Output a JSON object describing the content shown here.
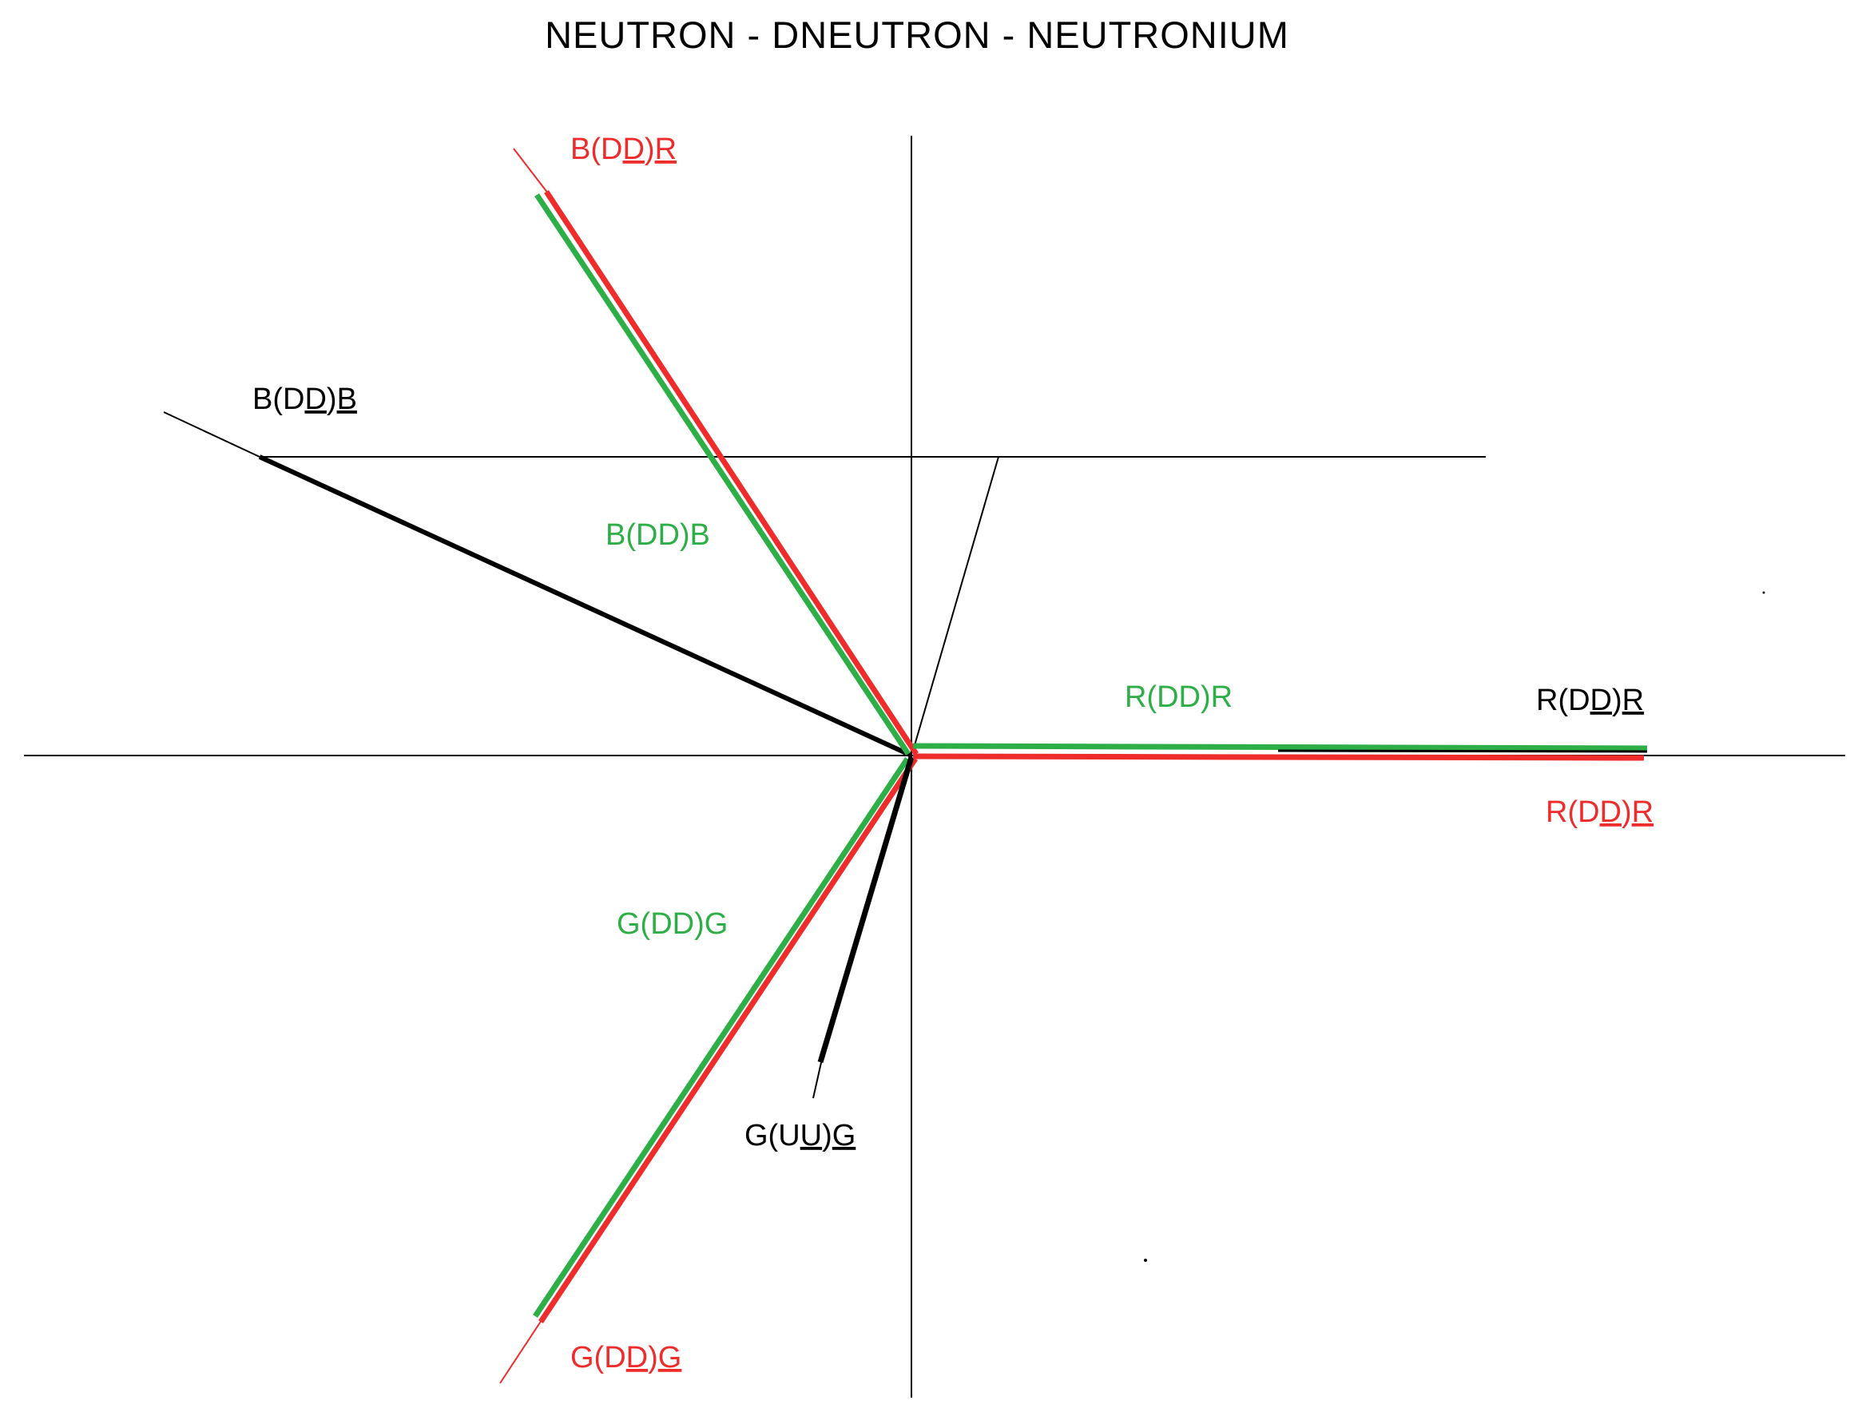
{
  "title": "NEUTRON - DNEUTRON - NEUTRONIUM",
  "colors": {
    "black": "#000000",
    "red": "#ee2c2c",
    "green": "#2eae47"
  },
  "labels": {
    "b_dd_r_red": {
      "pre": "B(D",
      "ul1": "D",
      "mid": ")",
      "ul2": "R",
      "post": ""
    },
    "b_dd_b_black": {
      "pre": "B(D",
      "ul1": "D",
      "mid": ")",
      "ul2": "B",
      "post": ""
    },
    "b_dd_b_green": {
      "pre": "B(DD)B",
      "ul1": "",
      "mid": "",
      "ul2": "",
      "post": ""
    },
    "r_dd_r_green": {
      "pre": "R(DD)R",
      "ul1": "",
      "mid": "",
      "ul2": "",
      "post": ""
    },
    "r_dd_r_black": {
      "pre": "R(D",
      "ul1": "D",
      "mid": ")",
      "ul2": "R",
      "post": ""
    },
    "r_dd_r_red": {
      "pre": "R(D",
      "ul1": "D",
      "mid": ")",
      "ul2": "R",
      "post": ""
    },
    "g_dd_g_green": {
      "pre": "G(DD)G",
      "ul1": "",
      "mid": "",
      "ul2": "",
      "post": ""
    },
    "g_uu_g_black": {
      "pre": "G(U",
      "ul1": "U",
      "mid": ")",
      "ul2": "G",
      "post": ""
    },
    "g_dd_g_red": {
      "pre": "G(D",
      "ul1": "D",
      "mid": ")",
      "ul2": "G",
      "post": ""
    }
  }
}
